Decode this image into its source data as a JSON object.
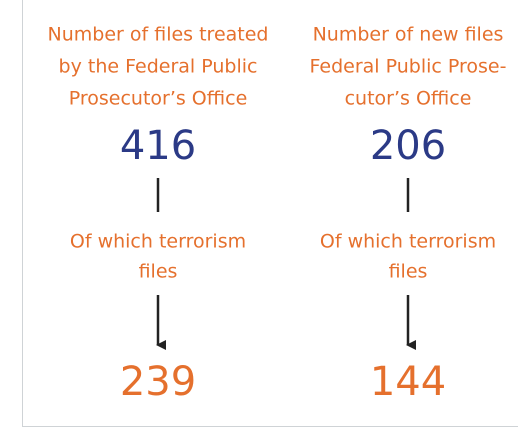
{
  "columns": [
    {
      "title_lines": [
        "Number of files treated",
        "by the Federal Public",
        "Prosecutor’s Office"
      ],
      "total": 416,
      "sub_lines": [
        "Of which terrorism",
        "files"
      ],
      "terrorism": 239
    },
    {
      "title_lines": [
        "Number of new files",
        "Federal Public Prose-",
        "cutor’s Office"
      ],
      "total": 206,
      "sub_lines": [
        "Of which terrorism",
        "files"
      ],
      "terrorism": 144
    }
  ]
}
